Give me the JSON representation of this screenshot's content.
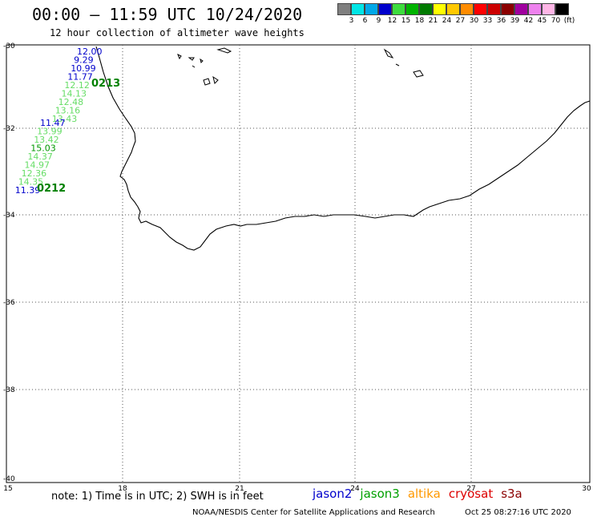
{
  "header": {
    "title": "00:00 – 11:59 UTC 10/24/2020",
    "subtitle": "12 hour collection of altimeter wave heights"
  },
  "colorbar": {
    "colors": [
      "#7f7f7f",
      "#00e5e5",
      "#00a8e8",
      "#0000cc",
      "#3ddc3d",
      "#00b300",
      "#007a00",
      "#ffff00",
      "#ffc800",
      "#ff8c00",
      "#ff0000",
      "#cc0000",
      "#8b0000",
      "#a0009f",
      "#ee82ee",
      "#ffb6e6",
      "#000000"
    ],
    "labels": [
      "3",
      "6",
      "9",
      "12",
      "15",
      "18",
      "21",
      "24",
      "27",
      "30",
      "33",
      "36",
      "39",
      "42",
      "45",
      "70",
      "(ft)"
    ]
  },
  "axes": {
    "lat_labels": [
      "-30",
      "-32",
      "-34",
      "-36",
      "-38",
      "-40"
    ],
    "lon_labels": [
      "15",
      "18",
      "21",
      "24",
      "27",
      "30"
    ]
  },
  "tracks": [
    {
      "pass_label": "0213",
      "pass_color": "#008000",
      "points": [
        {
          "value": "12.00",
          "color": "#0000cc"
        },
        {
          "value": "9.29",
          "color": "#0000cc"
        },
        {
          "value": "10.99",
          "color": "#0000cc"
        },
        {
          "value": "11.77",
          "color": "#0000cc"
        },
        {
          "value": "12.12",
          "color": "#66dd66"
        },
        {
          "value": "14.13",
          "color": "#66dd66"
        },
        {
          "value": "12.48",
          "color": "#66dd66"
        },
        {
          "value": "13.16",
          "color": "#66dd66"
        },
        {
          "value": "13.43",
          "color": "#66dd66"
        }
      ]
    },
    {
      "pass_label": "0212",
      "pass_color": "#008000",
      "points": [
        {
          "value": "11.47",
          "color": "#0000cc"
        },
        {
          "value": "13.99",
          "color": "#66dd66"
        },
        {
          "value": "13.42",
          "color": "#66dd66"
        },
        {
          "value": "15.03",
          "color": "#009900"
        },
        {
          "value": "14.37",
          "color": "#66dd66"
        },
        {
          "value": "14.97",
          "color": "#66dd66"
        },
        {
          "value": "12.36",
          "color": "#66dd66"
        },
        {
          "value": "14.35",
          "color": "#66dd66"
        },
        {
          "value": "11.39",
          "color": "#0000cc"
        }
      ]
    }
  ],
  "footer": {
    "note": "note:  1) Time is in UTC; 2) SWH is in feet",
    "legend": [
      {
        "name": "jason2",
        "color": "#0000cc"
      },
      {
        "name": "jason3",
        "color": "#00a000"
      },
      {
        "name": "altika",
        "color": "#ff9900"
      },
      {
        "name": "cryosat",
        "color": "#dd0000"
      },
      {
        "name": "s3a",
        "color": "#8b0000"
      }
    ],
    "credit": "NOAA/NESDIS Center for Satellite Applications and Research",
    "timestamp": "Oct 25 08:27:16 UTC 2020"
  }
}
